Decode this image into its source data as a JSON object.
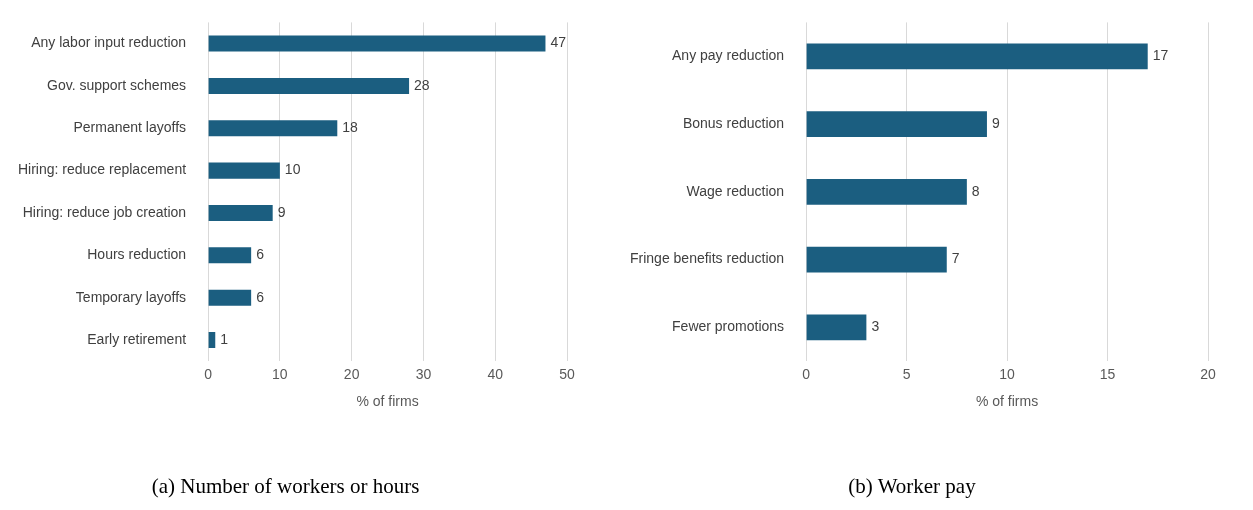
{
  "chart_data": [
    {
      "type": "bar",
      "orientation": "horizontal",
      "title": "(a) Number of workers or hours",
      "xlabel": "% of firms",
      "categories": [
        "Any labor input reduction",
        "Gov. support schemes",
        "Permanent layoffs",
        "Hiring: reduce replacement",
        "Hiring: reduce job creation",
        "Hours reduction",
        "Temporary layoffs",
        "Early retirement"
      ],
      "values": [
        47,
        28,
        18,
        10,
        9,
        6,
        6,
        1
      ],
      "color": "#1b5e80",
      "xlim": [
        0,
        50
      ],
      "xticks": [
        0,
        10,
        20,
        30,
        40,
        50
      ],
      "grid": "x",
      "legend": false,
      "data_labels": true
    },
    {
      "type": "bar",
      "orientation": "horizontal",
      "title": "(b) Worker pay",
      "xlabel": "% of firms",
      "categories": [
        "Any pay reduction",
        "Bonus reduction",
        "Wage reduction",
        "Fringe benefits reduction",
        "Fewer promotions"
      ],
      "values": [
        17,
        9,
        8,
        7,
        3
      ],
      "color": "#1b5e80",
      "xlim": [
        0,
        20
      ],
      "xticks": [
        0,
        5,
        10,
        15,
        20
      ],
      "grid": "x",
      "legend": false,
      "data_labels": true
    }
  ]
}
